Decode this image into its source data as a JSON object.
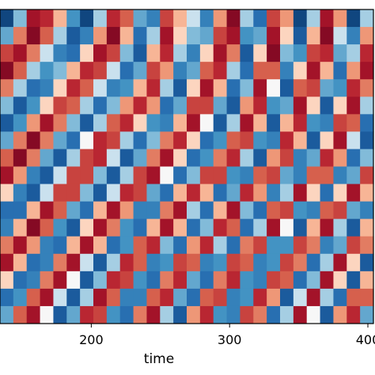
{
  "chart_data": {
    "type": "heatmap",
    "title": "",
    "xlabel": "time",
    "ylabel": "",
    "xlim": [
      134,
      404
    ],
    "x_ticks": [
      {
        "value": 200,
        "label": "200"
      },
      {
        "value": 300,
        "label": "300"
      },
      {
        "value": 400,
        "label": "400"
      }
    ],
    "y_ticks": [],
    "colormap": "RdBu_r",
    "color_low": "#053061",
    "color_mid": "#f7f7f7",
    "color_high": "#67001f",
    "rows": 18,
    "columns": 28,
    "values": [
      [
        -0.9,
        -0.3,
        0.8,
        0.7,
        0.2,
        -0.5,
        -0.9,
        -0.2,
        0.7,
        0.5,
        -0.4,
        -0.6,
        0.6,
        0.2,
        -0.1,
        -0.6,
        0.3,
        0.9,
        -0.2,
        -0.7,
        0.6,
        0.3,
        -0.9,
        -0.2,
        0.8,
        0.3,
        -0.9,
        -0.2
      ],
      [
        -0.4,
        0.4,
        0.9,
        0.5,
        -0.2,
        -0.8,
        -0.6,
        0.3,
        0.9,
        0.2,
        -0.7,
        -0.2,
        0.8,
        0.1,
        -0.3,
        -0.4,
        0.6,
        0.8,
        -0.5,
        -0.4,
        0.8,
        0.1,
        -0.8,
        0.2,
        0.9,
        -0.1,
        -0.6,
        0.3
      ],
      [
        0.6,
        0.8,
        0.4,
        -0.1,
        -0.6,
        -0.7,
        0.1,
        0.8,
        0.6,
        -0.3,
        -0.8,
        0.2,
        0.7,
        -0.2,
        -0.6,
        0.1,
        0.8,
        0.4,
        -0.8,
        0.1,
        0.9,
        -0.3,
        -0.5,
        0.6,
        0.7,
        -0.4,
        -0.2,
        0.7
      ],
      [
        0.9,
        0.5,
        -0.2,
        -0.5,
        -0.3,
        0.2,
        0.7,
        0.6,
        -0.1,
        -0.7,
        -0.4,
        0.6,
        0.3,
        -0.6,
        -0.4,
        0.5,
        0.7,
        -0.2,
        -0.7,
        0.5,
        0.5,
        -0.6,
        0.1,
        0.8,
        0.2,
        -0.7,
        0.3,
        0.8
      ],
      [
        0.4,
        -0.2,
        -0.7,
        -0.6,
        0.1,
        0.7,
        0.5,
        -0.1,
        -0.6,
        -0.5,
        0.2,
        0.7,
        -0.2,
        -0.8,
        0.1,
        0.8,
        0.2,
        -0.7,
        -0.3,
        0.8,
        0.0,
        -0.8,
        0.5,
        0.6,
        -0.4,
        -0.5,
        0.7,
        0.4
      ],
      [
        -0.3,
        -0.8,
        -0.5,
        0.1,
        0.6,
        0.5,
        -0.2,
        -0.7,
        -0.3,
        0.3,
        0.7,
        0.3,
        -0.7,
        -0.4,
        0.6,
        0.6,
        -0.4,
        -0.8,
        0.3,
        0.7,
        -0.5,
        -0.4,
        0.8,
        0.1,
        -0.8,
        0.1,
        0.8,
        -0.2
      ],
      [
        -0.8,
        -0.5,
        0.3,
        0.8,
        0.4,
        -0.3,
        -0.8,
        -0.2,
        0.5,
        0.7,
        0.1,
        -0.5,
        -0.6,
        0.2,
        0.8,
        0.0,
        -0.8,
        -0.2,
        0.8,
        0.2,
        -0.8,
        0.2,
        0.7,
        -0.5,
        -0.6,
        0.6,
        0.5,
        -0.7
      ],
      [
        -0.4,
        0.4,
        0.9,
        0.4,
        -0.4,
        -0.7,
        0.0,
        0.7,
        0.6,
        -0.2,
        -0.7,
        -0.3,
        0.4,
        0.7,
        0.1,
        -0.7,
        -0.5,
        0.5,
        0.6,
        -0.5,
        -0.6,
        0.7,
        0.2,
        -0.8,
        0.1,
        0.8,
        -0.1,
        -0.8
      ],
      [
        0.5,
        0.9,
        0.4,
        -0.4,
        -0.8,
        -0.2,
        0.6,
        0.7,
        -0.1,
        -0.8,
        -0.4,
        0.4,
        0.8,
        0.1,
        -0.7,
        -0.5,
        0.4,
        0.7,
        -0.2,
        -0.8,
        0.3,
        0.6,
        -0.6,
        -0.4,
        0.7,
        0.3,
        -0.7,
        -0.3
      ],
      [
        0.8,
        0.3,
        -0.6,
        -0.8,
        -0.1,
        0.6,
        0.6,
        -0.3,
        -0.8,
        -0.2,
        0.6,
        0.8,
        0.0,
        -0.7,
        -0.3,
        0.6,
        0.6,
        -0.5,
        -0.6,
        0.5,
        0.6,
        -0.4,
        -0.6,
        0.5,
        0.5,
        -0.6,
        -0.4,
        0.6
      ],
      [
        0.1,
        -0.6,
        -0.8,
        -0.1,
        0.6,
        0.6,
        -0.3,
        -0.8,
        -0.1,
        0.7,
        0.6,
        -0.4,
        -0.7,
        0.2,
        0.7,
        0.2,
        -0.7,
        -0.4,
        0.7,
        0.3,
        -0.6,
        -0.2,
        0.8,
        0.1,
        -0.7,
        0.1,
        0.8,
        0.2
      ],
      [
        -0.7,
        -0.7,
        0.2,
        0.8,
        0.5,
        -0.4,
        -0.7,
        0.2,
        0.8,
        0.3,
        -0.6,
        -0.6,
        0.4,
        0.8,
        -0.2,
        -0.7,
        0.2,
        0.8,
        -0.3,
        -0.7,
        0.5,
        0.6,
        -0.5,
        -0.6,
        0.5,
        0.6,
        -0.4,
        -0.6
      ],
      [
        -0.6,
        0.2,
        0.9,
        0.5,
        -0.5,
        -0.8,
        0.1,
        0.8,
        0.4,
        -0.5,
        -0.7,
        0.2,
        0.8,
        0.2,
        -0.7,
        -0.3,
        0.7,
        0.5,
        -0.7,
        -0.2,
        0.8,
        0.0,
        -0.8,
        0.2,
        0.8,
        -0.2,
        -0.8,
        0.2
      ],
      [
        0.4,
        0.8,
        0.3,
        -0.6,
        -0.7,
        0.2,
        0.8,
        0.2,
        -0.7,
        -0.5,
        0.5,
        0.7,
        -0.3,
        -0.7,
        0.3,
        0.7,
        -0.2,
        -0.7,
        0.4,
        0.6,
        -0.5,
        -0.5,
        0.6,
        0.4,
        -0.6,
        -0.4,
        0.6,
        0.4
      ],
      [
        0.8,
        0.2,
        -0.7,
        -0.6,
        0.4,
        0.8,
        -0.1,
        -0.8,
        -0.2,
        0.7,
        0.5,
        -0.6,
        -0.5,
        0.6,
        0.5,
        -0.6,
        -0.5,
        0.6,
        0.5,
        -0.6,
        -0.5,
        0.6,
        0.4,
        -0.7,
        -0.2,
        0.8,
        0.1,
        -0.8
      ],
      [
        0.1,
        -0.7,
        -0.6,
        0.4,
        0.8,
        0.0,
        -0.8,
        -0.3,
        0.7,
        0.6,
        -0.5,
        -0.7,
        0.4,
        0.7,
        -0.4,
        -0.7,
        0.4,
        0.7,
        -0.5,
        -0.6,
        0.6,
        0.5,
        -0.7,
        -0.3,
        0.8,
        0.1,
        -0.8,
        0.2
      ],
      [
        -0.7,
        -0.5,
        0.5,
        0.8,
        -0.1,
        -0.8,
        -0.2,
        0.8,
        0.5,
        -0.6,
        -0.6,
        0.5,
        0.7,
        -0.4,
        -0.7,
        0.5,
        0.6,
        -0.6,
        -0.5,
        0.7,
        0.3,
        -0.8,
        -0.1,
        0.8,
        -0.2,
        -0.7,
        0.5,
        0.5
      ],
      [
        -0.4,
        0.5,
        0.8,
        0.0,
        -0.8,
        -0.4,
        0.7,
        0.6,
        -0.5,
        -0.7,
        0.4,
        0.8,
        -0.2,
        -0.8,
        0.3,
        0.7,
        -0.5,
        -0.6,
        0.6,
        0.4,
        -0.7,
        -0.2,
        0.8,
        0.0,
        -0.8,
        0.3,
        0.7,
        -0.4
      ]
    ]
  }
}
